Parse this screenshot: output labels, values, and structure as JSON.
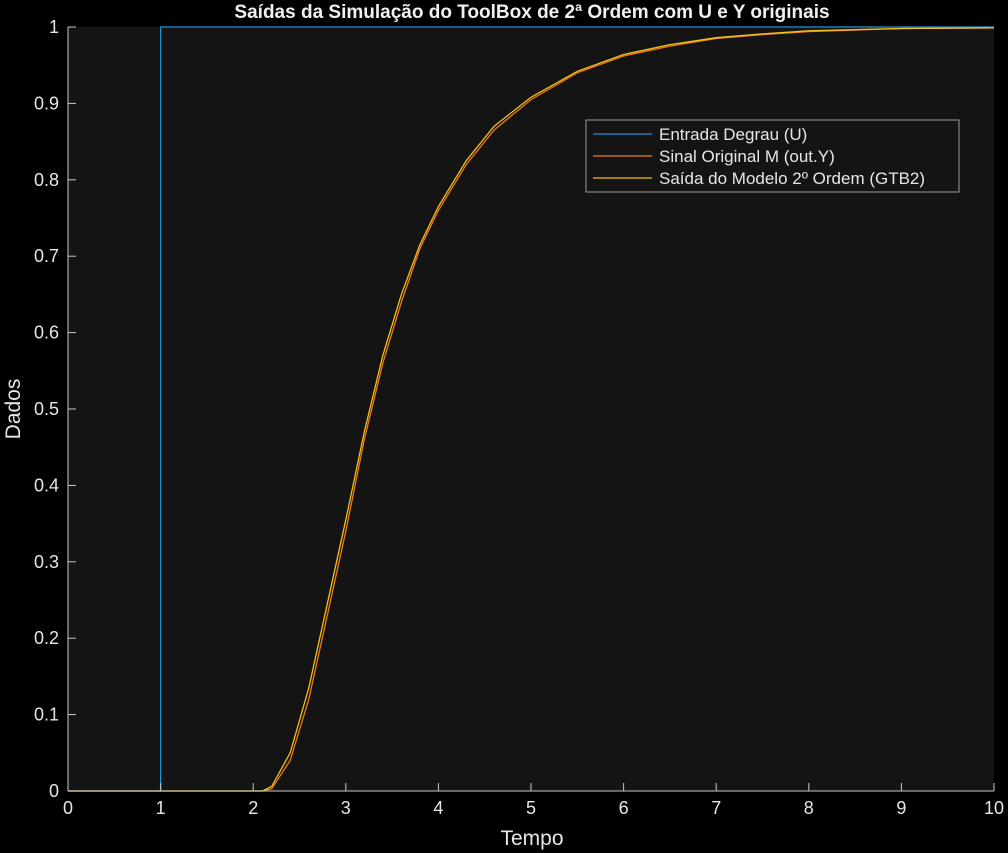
{
  "chart_data": {
    "type": "line",
    "title": "Saídas da Simulação do ToolBox de 2ª Ordem com U e Y originais",
    "xlabel": "Tempo",
    "ylabel": "Dados",
    "xlim": [
      0,
      10
    ],
    "ylim": [
      0,
      1
    ],
    "xticks": [
      "0",
      "1",
      "2",
      "3",
      "4",
      "5",
      "6",
      "7",
      "8",
      "9",
      "10"
    ],
    "yticks": [
      "0",
      "0.1",
      "0.2",
      "0.3",
      "0.4",
      "0.5",
      "0.6",
      "0.7",
      "0.8",
      "0.9",
      "1"
    ],
    "grid": false,
    "legend_position": "top-right",
    "background": "#141414",
    "page_background": "#000000",
    "text_color": "#e6e6e6",
    "series": [
      {
        "name": "Entrada Degrau (U)",
        "color": "#1f8fd6",
        "x": [
          0,
          1,
          1,
          10
        ],
        "y": [
          0,
          0,
          1,
          1
        ]
      },
      {
        "name": "Sinal Original M (out.Y)",
        "color": "#f07a1a",
        "x": [
          0,
          2.1,
          2.2,
          2.4,
          2.6,
          2.8,
          3.0,
          3.2,
          3.4,
          3.6,
          3.8,
          4.0,
          4.3,
          4.6,
          5.0,
          5.5,
          6.0,
          6.5,
          7.0,
          7.5,
          8.0,
          9.0,
          10.0
        ],
        "y": [
          0,
          0,
          0.003,
          0.04,
          0.12,
          0.23,
          0.34,
          0.46,
          0.56,
          0.64,
          0.71,
          0.76,
          0.82,
          0.865,
          0.905,
          0.94,
          0.962,
          0.975,
          0.985,
          0.99,
          0.994,
          0.998,
          0.999
        ]
      },
      {
        "name": "Saída do Modelo 2º Ordem (GTB2)",
        "color": "#f2c21b",
        "x": [
          0,
          2.1,
          2.2,
          2.4,
          2.6,
          2.8,
          3.0,
          3.2,
          3.4,
          3.6,
          3.8,
          4.0,
          4.3,
          4.6,
          5.0,
          5.5,
          6.0,
          6.5,
          7.0,
          7.5,
          8.0,
          9.0,
          10.0
        ],
        "y": [
          0,
          0,
          0.006,
          0.05,
          0.135,
          0.245,
          0.355,
          0.47,
          0.57,
          0.65,
          0.715,
          0.765,
          0.825,
          0.87,
          0.908,
          0.942,
          0.964,
          0.977,
          0.986,
          0.991,
          0.995,
          0.998,
          0.999
        ]
      }
    ]
  }
}
